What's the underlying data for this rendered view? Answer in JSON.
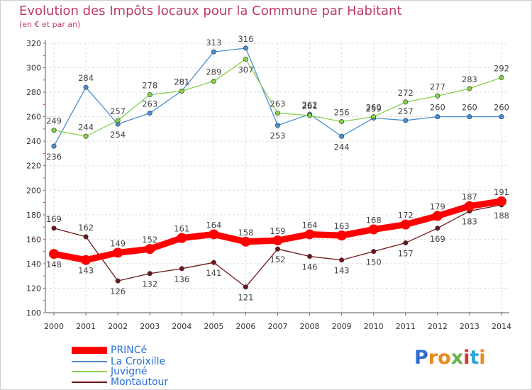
{
  "title": "Evolution des Impôts locaux pour la Commune par Habitant",
  "subtitle": "(en € et par an)",
  "logo": {
    "text": "Proxiti",
    "letters": [
      "P",
      "r",
      "o",
      "x",
      "i",
      "t",
      "i"
    ],
    "colors": [
      "#2f6dd0",
      "#e98a1a",
      "#e98a1a",
      "#6ab04c",
      "#e2342b",
      "#2aa6d8",
      "#e98a1a"
    ]
  },
  "chart_data": {
    "type": "line",
    "title": "Evolution des Impôts locaux pour la Commune par Habitant",
    "subtitle": "(en € et par an)",
    "xlabel": "",
    "ylabel": "",
    "x": [
      "2000",
      "2001",
      "2002",
      "2003",
      "2004",
      "2005",
      "2006",
      "2007",
      "2008",
      "2009",
      "2010",
      "2011",
      "2012",
      "2013",
      "2014"
    ],
    "ylim": [
      100,
      320
    ],
    "yticks": [
      100,
      120,
      140,
      160,
      180,
      200,
      220,
      240,
      260,
      280,
      300,
      320
    ],
    "grid": true,
    "legend_position": "bottom-left",
    "series": [
      {
        "name": "PRINCé",
        "color": "#ff0000",
        "emphasis": true,
        "values": [
          148,
          143,
          149,
          152,
          161,
          164,
          158,
          159,
          164,
          163,
          168,
          172,
          179,
          187,
          191
        ]
      },
      {
        "name": "La Croixille",
        "color": "#4a8fd0",
        "values": [
          236,
          284,
          254,
          263,
          281,
          313,
          316,
          253,
          262,
          244,
          259,
          257,
          260,
          260,
          260
        ]
      },
      {
        "name": "Juvigné",
        "color": "#86d04f",
        "values": [
          249,
          244,
          257,
          278,
          281,
          289,
          307,
          263,
          261,
          256,
          260,
          272,
          277,
          283,
          292
        ]
      },
      {
        "name": "Montautour",
        "color": "#6b1818",
        "values": [
          169,
          162,
          126,
          132,
          136,
          141,
          121,
          152,
          146,
          143,
          150,
          157,
          169,
          183,
          188
        ]
      }
    ]
  }
}
